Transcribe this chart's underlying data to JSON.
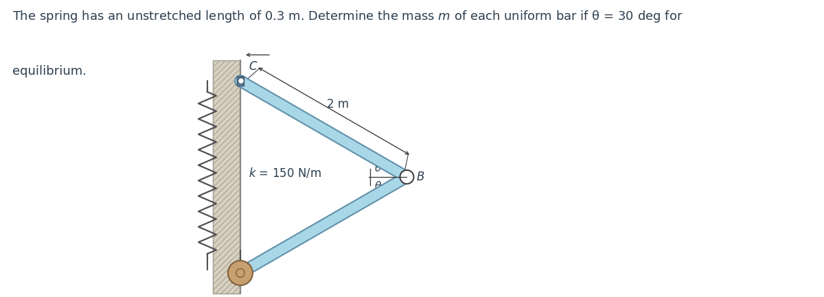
{
  "problem_text_line1": "The spring has an unstretched length of 0.3 m. Determine the mass $m$ of each uniform bar if θ = 30 deg for",
  "problem_text_line2": "equilibrium.",
  "bg_color": "#ffffff",
  "wall_fill_color": "#d8d0c0",
  "wall_hatch_color": "#b0a898",
  "wall_edge_color": "#888880",
  "bar_fill_color": "#a8d8e8",
  "bar_edge_color": "#6090a8",
  "spring_color": "#505050",
  "roller_fill": "#c8a070",
  "roller_edge": "#806040",
  "pin_fill": "#6080a0",
  "pin_edge": "#405870",
  "circle_B_fill": "#ffffff",
  "circle_B_edge": "#404040",
  "dim_color": "#404040",
  "angle_line_color": "#303030",
  "label_color": "#2c3e50",
  "label_fontsize": 12,
  "problem_fontsize": 13,
  "theta_fontsize": 11,
  "k_fontsize": 12,
  "dim_fontsize": 12
}
